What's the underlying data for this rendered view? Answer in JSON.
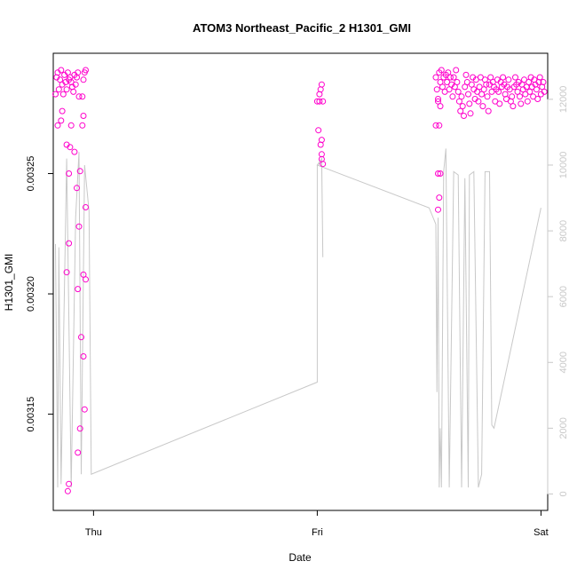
{
  "chart_data": {
    "type": "scatter",
    "title": "ATOM3 Northeast_Pacific_2 H1301_GMI",
    "xlabel": "Date",
    "ylabel": "H1301_GMI",
    "x_ticks": [
      "Thu",
      "Fri",
      "Sat"
    ],
    "y_ticks": [
      "0.00315",
      "0.00320",
      "0.00325"
    ],
    "y_right_ticks": [
      "0",
      "2000",
      "4000",
      "6000",
      "8000",
      "10000",
      "12000"
    ],
    "xlim": [
      -0.18,
      2.03
    ],
    "ylim": [
      0.00311,
      0.0033
    ],
    "y_right_lim": [
      -500,
      13400
    ],
    "colors": {
      "points": "#ff00cc",
      "altitude_line": "#c8c8c8",
      "axis": "#000000"
    },
    "series": [
      {
        "kind": "points",
        "points": [
          {
            "x": -0.17,
            "y": 0.003283
          },
          {
            "x": -0.165,
            "y": 0.00329
          },
          {
            "x": -0.16,
            "y": 0.003292
          },
          {
            "x": -0.155,
            "y": 0.003285
          },
          {
            "x": -0.15,
            "y": 0.003289
          },
          {
            "x": -0.145,
            "y": 0.003293
          },
          {
            "x": -0.14,
            "y": 0.003287
          },
          {
            "x": -0.135,
            "y": 0.003283
          },
          {
            "x": -0.13,
            "y": 0.003291
          },
          {
            "x": -0.125,
            "y": 0.003288
          },
          {
            "x": -0.12,
            "y": 0.003285
          },
          {
            "x": -0.115,
            "y": 0.003292
          },
          {
            "x": -0.11,
            "y": 0.003289
          },
          {
            "x": -0.105,
            "y": 0.00329
          },
          {
            "x": -0.1,
            "y": 0.003288
          },
          {
            "x": -0.095,
            "y": 0.003286
          },
          {
            "x": -0.09,
            "y": 0.003284
          },
          {
            "x": -0.085,
            "y": 0.003291
          },
          {
            "x": -0.08,
            "y": 0.003287
          },
          {
            "x": -0.075,
            "y": 0.00329
          },
          {
            "x": -0.07,
            "y": 0.003292
          },
          {
            "x": -0.065,
            "y": 0.003282
          },
          {
            "x": -0.16,
            "y": 0.00327
          },
          {
            "x": -0.145,
            "y": 0.003272
          },
          {
            "x": -0.14,
            "y": 0.003276
          },
          {
            "x": -0.12,
            "y": 0.003262
          },
          {
            "x": -0.11,
            "y": 0.00325
          },
          {
            "x": -0.105,
            "y": 0.003261
          },
          {
            "x": -0.1,
            "y": 0.00327
          },
          {
            "x": -0.085,
            "y": 0.003259
          },
          {
            "x": -0.075,
            "y": 0.003244
          },
          {
            "x": -0.11,
            "y": 0.003221
          },
          {
            "x": -0.12,
            "y": 0.003209
          },
          {
            "x": -0.07,
            "y": 0.003202
          },
          {
            "x": -0.065,
            "y": 0.003228
          },
          {
            "x": -0.06,
            "y": 0.003251
          },
          {
            "x": -0.045,
            "y": 0.003208
          },
          {
            "x": -0.05,
            "y": 0.003282
          },
          {
            "x": -0.05,
            "y": 0.00327
          },
          {
            "x": -0.045,
            "y": 0.003274
          },
          {
            "x": -0.045,
            "y": 0.003289
          },
          {
            "x": -0.04,
            "y": 0.003292
          },
          {
            "x": -0.035,
            "y": 0.003293
          },
          {
            "x": -0.035,
            "y": 0.003236
          },
          {
            "x": -0.035,
            "y": 0.003206
          },
          {
            "x": -0.045,
            "y": 0.003174
          },
          {
            "x": -0.04,
            "y": 0.003152
          },
          {
            "x": -0.055,
            "y": 0.003182
          },
          {
            "x": -0.115,
            "y": 0.003118
          },
          {
            "x": -0.11,
            "y": 0.003121
          },
          {
            "x": -0.07,
            "y": 0.003134
          },
          {
            "x": -0.06,
            "y": 0.003144
          },
          {
            "x": 1.0,
            "y": 0.00328
          },
          {
            "x": 1.005,
            "y": 0.003268
          },
          {
            "x": 1.01,
            "y": 0.00328
          },
          {
            "x": 1.015,
            "y": 0.003285
          },
          {
            "x": 1.02,
            "y": 0.003287
          },
          {
            "x": 1.025,
            "y": 0.00328
          },
          {
            "x": 1.015,
            "y": 0.003262
          },
          {
            "x": 1.02,
            "y": 0.003264
          },
          {
            "x": 1.02,
            "y": 0.003258
          },
          {
            "x": 1.025,
            "y": 0.003254
          },
          {
            "x": 1.02,
            "y": 0.003256
          },
          {
            "x": 1.01,
            "y": 0.003283
          },
          {
            "x": 1.53,
            "y": 0.00329
          },
          {
            "x": 1.535,
            "y": 0.003285
          },
          {
            "x": 1.54,
            "y": 0.00328
          },
          {
            "x": 1.545,
            "y": 0.003292
          },
          {
            "x": 1.55,
            "y": 0.003288
          },
          {
            "x": 1.555,
            "y": 0.003293
          },
          {
            "x": 1.56,
            "y": 0.003286
          },
          {
            "x": 1.565,
            "y": 0.00329
          },
          {
            "x": 1.57,
            "y": 0.003284
          },
          {
            "x": 1.575,
            "y": 0.003291
          },
          {
            "x": 1.58,
            "y": 0.003288
          },
          {
            "x": 1.585,
            "y": 0.003292
          },
          {
            "x": 1.59,
            "y": 0.003285
          },
          {
            "x": 1.595,
            "y": 0.00329
          },
          {
            "x": 1.6,
            "y": 0.003287
          },
          {
            "x": 1.605,
            "y": 0.003282
          },
          {
            "x": 1.61,
            "y": 0.00329
          },
          {
            "x": 1.615,
            "y": 0.003286
          },
          {
            "x": 1.62,
            "y": 0.003293
          },
          {
            "x": 1.625,
            "y": 0.003288
          },
          {
            "x": 1.63,
            "y": 0.003284
          },
          {
            "x": 1.635,
            "y": 0.00328
          },
          {
            "x": 1.64,
            "y": 0.003276
          },
          {
            "x": 1.645,
            "y": 0.003282
          },
          {
            "x": 1.65,
            "y": 0.003278
          },
          {
            "x": 1.655,
            "y": 0.003274
          },
          {
            "x": 1.66,
            "y": 0.003286
          },
          {
            "x": 1.665,
            "y": 0.003291
          },
          {
            "x": 1.67,
            "y": 0.003288
          },
          {
            "x": 1.675,
            "y": 0.003283
          },
          {
            "x": 1.68,
            "y": 0.003279
          },
          {
            "x": 1.685,
            "y": 0.003275
          },
          {
            "x": 1.69,
            "y": 0.003287
          },
          {
            "x": 1.695,
            "y": 0.00329
          },
          {
            "x": 1.7,
            "y": 0.003285
          },
          {
            "x": 1.705,
            "y": 0.003281
          },
          {
            "x": 1.71,
            "y": 0.003289
          },
          {
            "x": 1.715,
            "y": 0.003284
          },
          {
            "x": 1.72,
            "y": 0.00328
          },
          {
            "x": 1.725,
            "y": 0.003286
          },
          {
            "x": 1.73,
            "y": 0.00329
          },
          {
            "x": 1.735,
            "y": 0.003283
          },
          {
            "x": 1.74,
            "y": 0.003278
          },
          {
            "x": 1.745,
            "y": 0.003285
          },
          {
            "x": 1.75,
            "y": 0.003289
          },
          {
            "x": 1.755,
            "y": 0.003287
          },
          {
            "x": 1.76,
            "y": 0.003282
          },
          {
            "x": 1.765,
            "y": 0.003276
          },
          {
            "x": 1.77,
            "y": 0.003287
          },
          {
            "x": 1.775,
            "y": 0.00329
          },
          {
            "x": 1.78,
            "y": 0.003284
          },
          {
            "x": 1.785,
            "y": 0.003288
          },
          {
            "x": 1.79,
            "y": 0.003286
          },
          {
            "x": 1.795,
            "y": 0.00328
          },
          {
            "x": 1.8,
            "y": 0.003285
          },
          {
            "x": 1.805,
            "y": 0.003289
          },
          {
            "x": 1.81,
            "y": 0.003284
          },
          {
            "x": 1.815,
            "y": 0.003279
          },
          {
            "x": 1.82,
            "y": 0.003288
          },
          {
            "x": 1.825,
            "y": 0.003286
          },
          {
            "x": 1.83,
            "y": 0.00329
          },
          {
            "x": 1.835,
            "y": 0.003287
          },
          {
            "x": 1.84,
            "y": 0.003283
          },
          {
            "x": 1.845,
            "y": 0.003281
          },
          {
            "x": 1.85,
            "y": 0.003286
          },
          {
            "x": 1.855,
            "y": 0.003289
          },
          {
            "x": 1.86,
            "y": 0.003285
          },
          {
            "x": 1.865,
            "y": 0.00328
          },
          {
            "x": 1.87,
            "y": 0.003282
          },
          {
            "x": 1.875,
            "y": 0.003278
          },
          {
            "x": 1.88,
            "y": 0.003286
          },
          {
            "x": 1.885,
            "y": 0.00329
          },
          {
            "x": 1.89,
            "y": 0.003287
          },
          {
            "x": 1.895,
            "y": 0.003284
          },
          {
            "x": 1.9,
            "y": 0.003288
          },
          {
            "x": 1.905,
            "y": 0.003282
          },
          {
            "x": 1.91,
            "y": 0.003279
          },
          {
            "x": 1.915,
            "y": 0.003287
          },
          {
            "x": 1.92,
            "y": 0.003285
          },
          {
            "x": 1.925,
            "y": 0.003289
          },
          {
            "x": 1.93,
            "y": 0.003283
          },
          {
            "x": 1.935,
            "y": 0.003286
          },
          {
            "x": 1.94,
            "y": 0.00328
          },
          {
            "x": 1.945,
            "y": 0.003288
          },
          {
            "x": 1.95,
            "y": 0.003284
          },
          {
            "x": 1.955,
            "y": 0.00329
          },
          {
            "x": 1.96,
            "y": 0.003286
          },
          {
            "x": 1.965,
            "y": 0.003282
          },
          {
            "x": 1.97,
            "y": 0.003289
          },
          {
            "x": 1.975,
            "y": 0.003287
          },
          {
            "x": 1.98,
            "y": 0.003285
          },
          {
            "x": 1.985,
            "y": 0.003281
          },
          {
            "x": 1.99,
            "y": 0.003288
          },
          {
            "x": 1.995,
            "y": 0.00329
          },
          {
            "x": 2.0,
            "y": 0.003283
          },
          {
            "x": 2.005,
            "y": 0.003286
          },
          {
            "x": 2.01,
            "y": 0.003288
          },
          {
            "x": 2.015,
            "y": 0.003284
          },
          {
            "x": 1.53,
            "y": 0.00327
          },
          {
            "x": 1.54,
            "y": 0.00325
          },
          {
            "x": 1.545,
            "y": 0.00324
          },
          {
            "x": 1.55,
            "y": 0.00325
          },
          {
            "x": 1.54,
            "y": 0.003235
          },
          {
            "x": 1.545,
            "y": 0.00327
          },
          {
            "x": 1.55,
            "y": 0.003278
          },
          {
            "x": 1.54,
            "y": 0.003281
          }
        ]
      },
      {
        "kind": "line",
        "axis": "right",
        "points": [
          {
            "x": -0.17,
            "y": 7600
          },
          {
            "x": -0.16,
            "y": 200
          },
          {
            "x": -0.155,
            "y": 7500
          },
          {
            "x": -0.145,
            "y": 300
          },
          {
            "x": -0.12,
            "y": 10200
          },
          {
            "x": -0.1,
            "y": 200
          },
          {
            "x": -0.08,
            "y": 8400
          },
          {
            "x": -0.065,
            "y": 10400
          },
          {
            "x": -0.055,
            "y": 600
          },
          {
            "x": -0.04,
            "y": 10000
          },
          {
            "x": -0.02,
            "y": 8600
          },
          {
            "x": -0.01,
            "y": 600
          },
          {
            "x": 1.0,
            "y": 3400
          },
          {
            "x": 1.0,
            "y": 10000
          },
          {
            "x": 1.02,
            "y": 10200
          },
          {
            "x": 1.025,
            "y": 7200
          },
          {
            "x": 1.02,
            "y": 10100
          },
          {
            "x": 1.0,
            "y": 10000
          },
          {
            "x": 1.5,
            "y": 8700
          },
          {
            "x": 1.53,
            "y": 8200
          },
          {
            "x": 1.535,
            "y": 3100
          },
          {
            "x": 1.54,
            "y": 8400
          },
          {
            "x": 1.545,
            "y": 200
          },
          {
            "x": 1.55,
            "y": 2000
          },
          {
            "x": 1.555,
            "y": 200
          },
          {
            "x": 1.565,
            "y": 9800
          },
          {
            "x": 1.575,
            "y": 10500
          },
          {
            "x": 1.59,
            "y": 200
          },
          {
            "x": 1.61,
            "y": 9800
          },
          {
            "x": 1.63,
            "y": 9700
          },
          {
            "x": 1.645,
            "y": 200
          },
          {
            "x": 1.66,
            "y": 9600
          },
          {
            "x": 1.675,
            "y": 200
          },
          {
            "x": 1.68,
            "y": 9700
          },
          {
            "x": 1.7,
            "y": 9800
          },
          {
            "x": 1.72,
            "y": 200
          },
          {
            "x": 1.735,
            "y": 600
          },
          {
            "x": 1.75,
            "y": 9800
          },
          {
            "x": 1.77,
            "y": 9800
          },
          {
            "x": 1.78,
            "y": 2100
          },
          {
            "x": 1.79,
            "y": 2000
          },
          {
            "x": 2.0,
            "y": 8700
          }
        ]
      }
    ],
    "grid": false,
    "legend": "none"
  }
}
